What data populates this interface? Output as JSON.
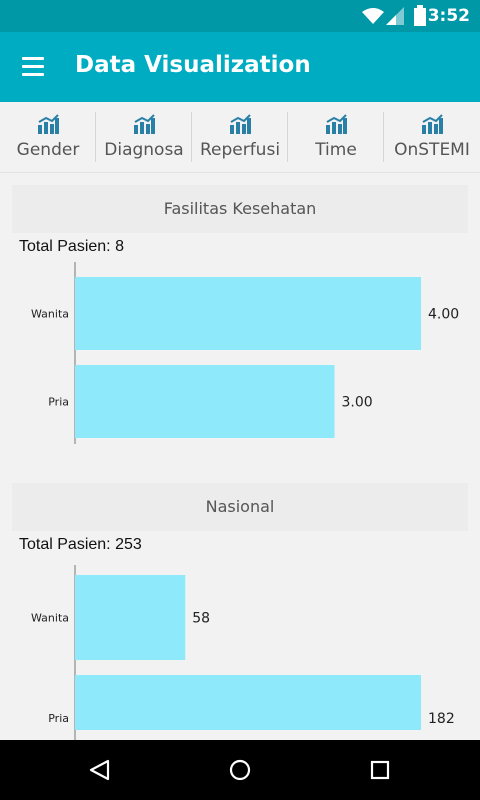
{
  "status_bar": {
    "time": "3:52",
    "icons": [
      "wifi-icon",
      "signal-icon",
      "battery-icon"
    ]
  },
  "app_bar": {
    "title": "Data Visualization",
    "menu_icon": "hamburger-menu-icon"
  },
  "tabs": [
    {
      "label": "Gender",
      "icon": "bar-chart-icon"
    },
    {
      "label": "Diagnosa",
      "icon": "bar-chart-icon"
    },
    {
      "label": "Reperfusi",
      "icon": "bar-chart-icon"
    },
    {
      "label": "Time",
      "icon": "bar-chart-icon"
    },
    {
      "label": "OnSTEMI",
      "icon": "bar-chart-icon"
    }
  ],
  "panels": [
    {
      "title": "Fasilitas Kesehatan",
      "total_label": "Total Pasien:",
      "total_value": "8"
    },
    {
      "title": "Nasional",
      "total_label": "Total Pasien:",
      "total_value": "253"
    }
  ],
  "colors": {
    "bar": "#8ee9fb",
    "accent": "#00acc1",
    "status": "#0097a7"
  },
  "chart_data": [
    {
      "type": "bar",
      "orientation": "horizontal",
      "categories": [
        "Wanita",
        "Pria"
      ],
      "values": [
        4,
        3
      ],
      "value_labels": [
        "4.00",
        "3.00"
      ],
      "xlim": [
        0,
        4
      ]
    },
    {
      "type": "bar",
      "orientation": "horizontal",
      "categories": [
        "Wanita",
        "Pria"
      ],
      "values": [
        58,
        182
      ],
      "value_labels": [
        "58",
        "182"
      ],
      "xlim": [
        0,
        182
      ]
    }
  ],
  "nav_bar": {
    "buttons": [
      "back-icon",
      "home-icon",
      "recents-icon"
    ]
  }
}
